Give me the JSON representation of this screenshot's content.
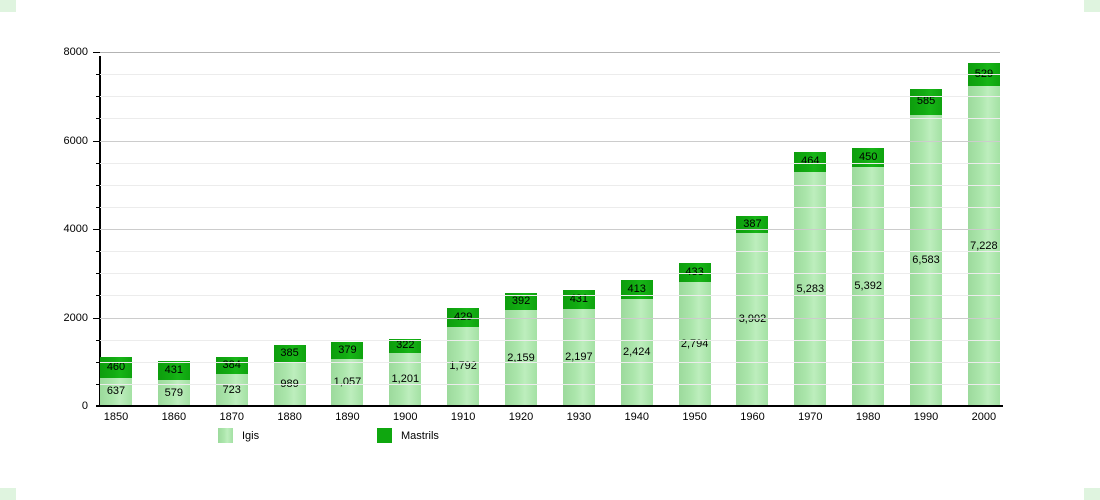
{
  "chart_data": {
    "type": "bar",
    "stacked": true,
    "title": "",
    "categories": [
      "1850",
      "1860",
      "1870",
      "1880",
      "1890",
      "1900",
      "1910",
      "1920",
      "1930",
      "1940",
      "1950",
      "1960",
      "1970",
      "1980",
      "1990",
      "2000"
    ],
    "series": [
      {
        "name": "Igis",
        "color": "#a9e4a9",
        "values": [
          637,
          579,
          723,
          989,
          1057,
          1201,
          1792,
          2159,
          2197,
          2424,
          2794,
          3902,
          5283,
          5392,
          6583,
          7228
        ]
      },
      {
        "name": "Mastrils",
        "color": "#0fa70f",
        "values": [
          460,
          431,
          384,
          385,
          379,
          322,
          429,
          392,
          431,
          413,
          433,
          387,
          464,
          450,
          585,
          529
        ]
      }
    ],
    "ylim": [
      0,
      8000
    ],
    "ytick_step": 2000,
    "minor_tick_step": 500,
    "ytick_labels": [
      "0",
      "2000",
      "4000",
      "6000",
      "8000"
    ],
    "grid": true,
    "legend_position": "bottom",
    "value_labels": "inside-segments"
  },
  "legend": {
    "items": [
      {
        "label": "Igis",
        "color": "#a9e4a9"
      },
      {
        "label": "Mastrils",
        "color": "#0fa70f"
      }
    ]
  },
  "colors": {
    "background": "#ffffff",
    "igis": "#a9e4a9",
    "mastrils": "#0fa70f",
    "axis": "#000000",
    "gridline_top": "#b3b3b3",
    "gridline_major": "#cccccc",
    "gridline_minor": "#ececec",
    "corner_mark": "#dff4df",
    "label_text": "#000000"
  }
}
